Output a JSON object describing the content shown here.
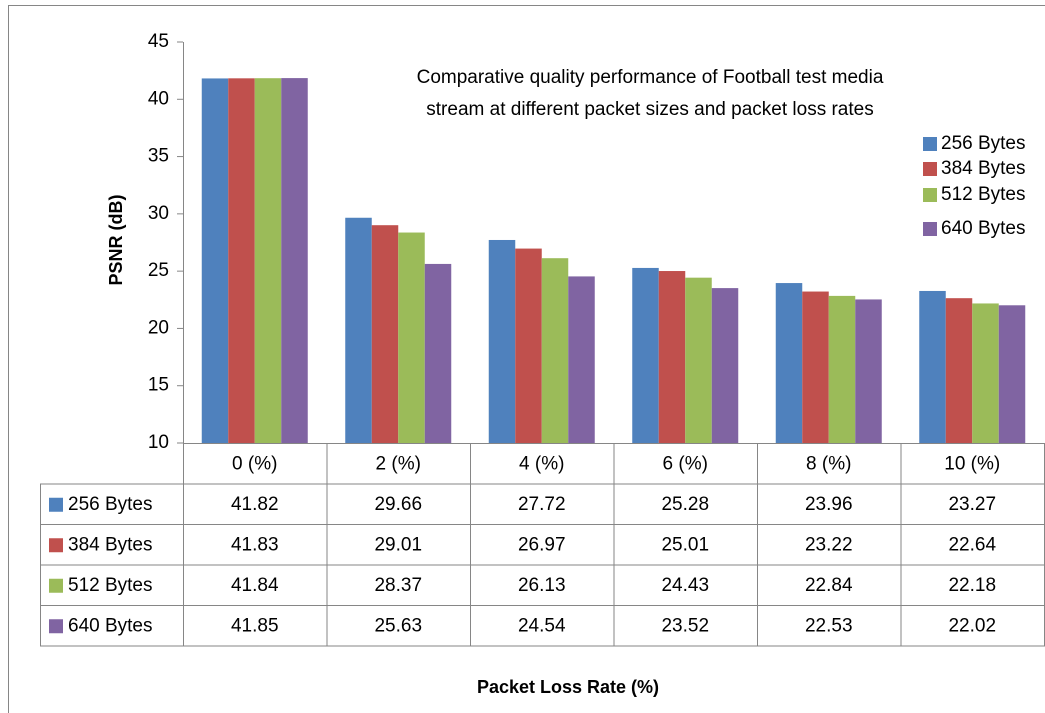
{
  "chart_data": {
    "type": "bar",
    "title": [
      "Comparative quality performance of Football test media",
      "stream at different packet sizes and packet loss rates"
    ],
    "x_label": "Packet Loss Rate (%)",
    "y_label": "PSNR (dB)",
    "categories": [
      "0 (%)",
      "2 (%)",
      "4 (%)",
      "6 (%)",
      "8 (%)",
      "10 (%)"
    ],
    "series": [
      {
        "name": "256 Bytes",
        "color": "#4f81bd",
        "values": [
          41.82,
          29.66,
          27.72,
          25.28,
          23.96,
          23.27
        ]
      },
      {
        "name": "384 Bytes",
        "color": "#c0504d",
        "values": [
          41.83,
          29.01,
          26.97,
          25.01,
          23.22,
          22.64
        ]
      },
      {
        "name": "512 Bytes",
        "color": "#9bbb59",
        "values": [
          41.84,
          28.37,
          26.13,
          24.43,
          22.84,
          22.18
        ]
      },
      {
        "name": "640 Bytes",
        "color": "#8064a2",
        "values": [
          41.85,
          25.63,
          24.54,
          23.52,
          22.53,
          22.02
        ]
      }
    ],
    "ylim": [
      10,
      45
    ],
    "yticks": [
      10,
      15,
      20,
      25,
      30,
      35,
      40,
      45
    ],
    "legend": "right",
    "data_table": true
  }
}
